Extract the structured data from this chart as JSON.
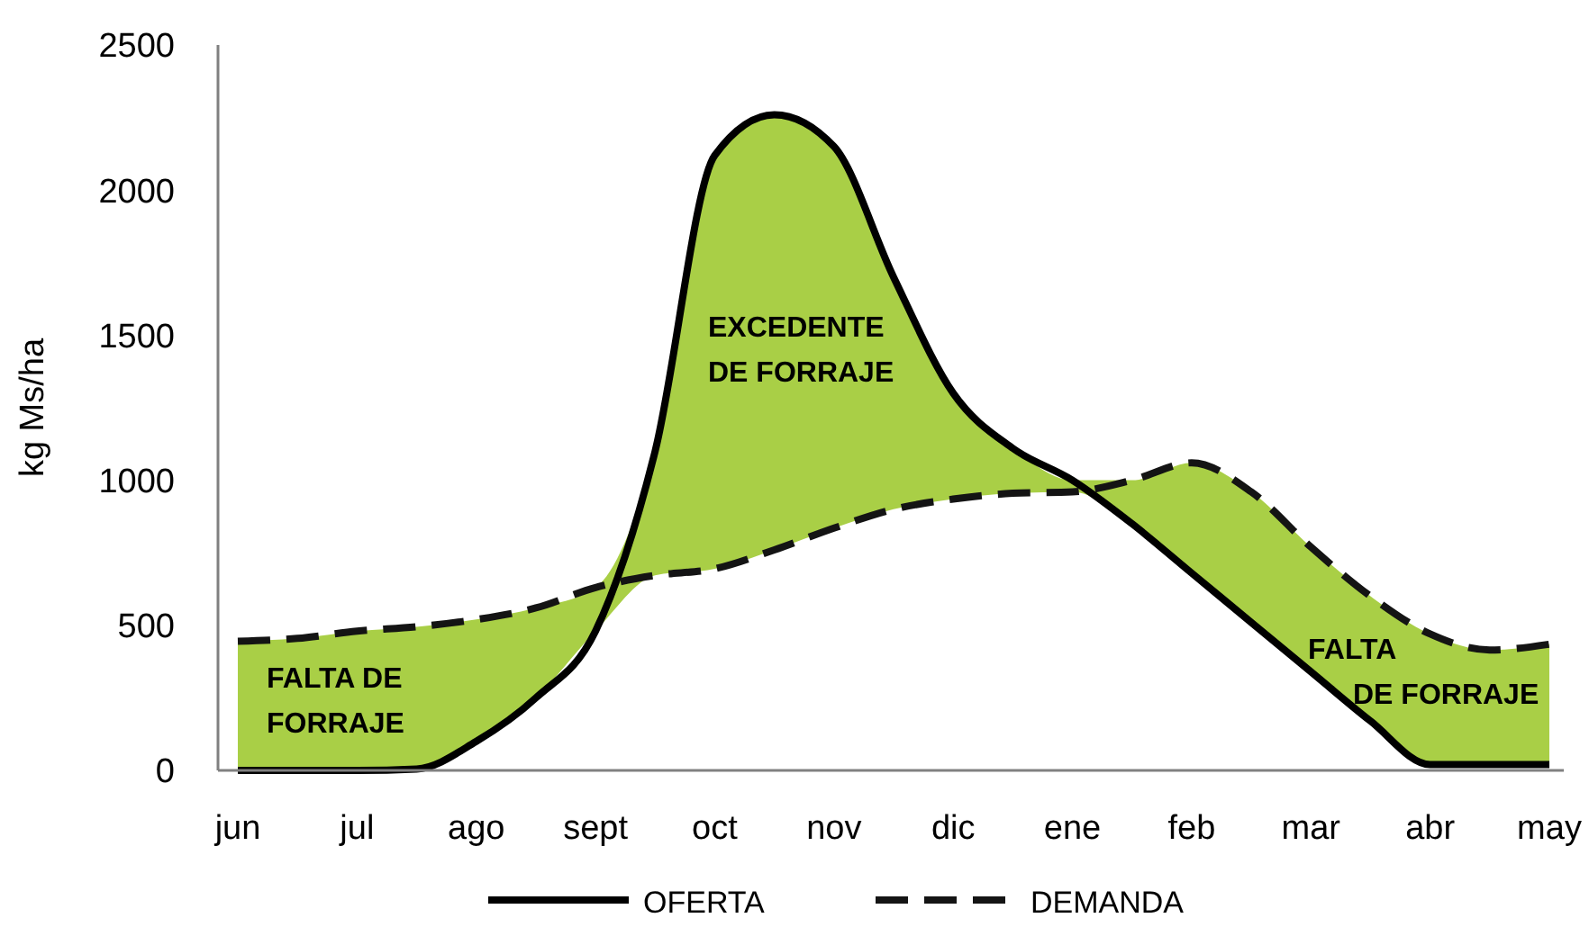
{
  "chart_data": {
    "type": "line",
    "ylabel": "kg Ms/ha",
    "categories": [
      "jun",
      null,
      "jul",
      null,
      "ago",
      null,
      "sept",
      null,
      "oct",
      null,
      "nov",
      null,
      "dic",
      null,
      "ene",
      null,
      "feb",
      null,
      "mar",
      null,
      "abr",
      null,
      "may"
    ],
    "ylim": [
      0,
      2500
    ],
    "yticks": [
      0,
      500,
      1000,
      1500,
      2000,
      2500
    ],
    "series": [
      {
        "name": "OFERTA",
        "color": "#000000",
        "line_style": "solid",
        "values": [
          0,
          0,
          0,
          5,
          100,
          250,
          480,
          1100,
          2120,
          2260,
          2150,
          1700,
          1300,
          1110,
          1000,
          850,
          680,
          510,
          340,
          170,
          20,
          20,
          20
        ]
      },
      {
        "name": "DEMANDA",
        "color": "#141414",
        "line_style": "dashed",
        "values": [
          445,
          455,
          480,
          495,
          520,
          560,
          630,
          672,
          695,
          760,
          835,
          900,
          935,
          955,
          960,
          1000,
          1060,
          960,
          770,
          600,
          470,
          415,
          435
        ],
        "upper": [
          445,
          455,
          480,
          495,
          520,
          560,
          630,
          1100,
          2120,
          2260,
          2150,
          1700,
          1300,
          1110,
          1000,
          1000,
          1060,
          960,
          770,
          600,
          470,
          415,
          435
        ],
        "lower": [
          0,
          0,
          0,
          5,
          100,
          250,
          480,
          672,
          695,
          760,
          835,
          900,
          935,
          955,
          960,
          850,
          680,
          510,
          340,
          170,
          20,
          20,
          20
        ]
      }
    ],
    "legend": "bottom",
    "grid": false,
    "annotations": [
      "FALTA DE\nFORRAJE",
      "EXCEDENTE\nDE FORRAJE",
      "FALTA\nDE FORRAJE"
    ]
  }
}
